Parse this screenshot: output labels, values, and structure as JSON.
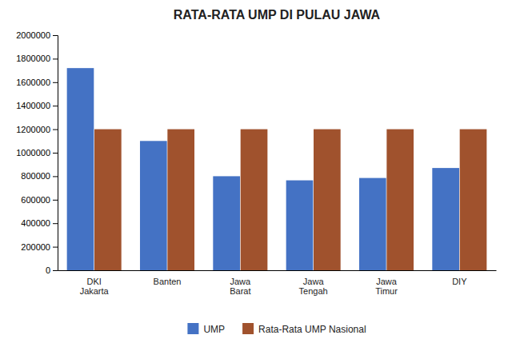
{
  "chart_data": {
    "type": "bar",
    "title": "RATA-RATA UMP DI PULAU JAWA",
    "categories": [
      "DKI\nJakarta",
      "Banten",
      "Jawa\nBarat",
      "Jawa\nTengah",
      "Jawa\nTimur",
      "DIY"
    ],
    "series": [
      {
        "name": "UMP",
        "color": "#4472C4",
        "values": [
          1720000,
          1100000,
          800000,
          765000,
          785000,
          870000
        ]
      },
      {
        "name": "Rata-Rata UMP Nasional",
        "color": "#A0522D",
        "values": [
          1200000,
          1200000,
          1200000,
          1200000,
          1200000,
          1200000
        ]
      }
    ],
    "ylim": [
      0,
      2000000
    ],
    "yticks": [
      0,
      200000,
      400000,
      600000,
      800000,
      1000000,
      1200000,
      1400000,
      1600000,
      1800000,
      2000000
    ],
    "grid": false,
    "legend": "bottom"
  }
}
